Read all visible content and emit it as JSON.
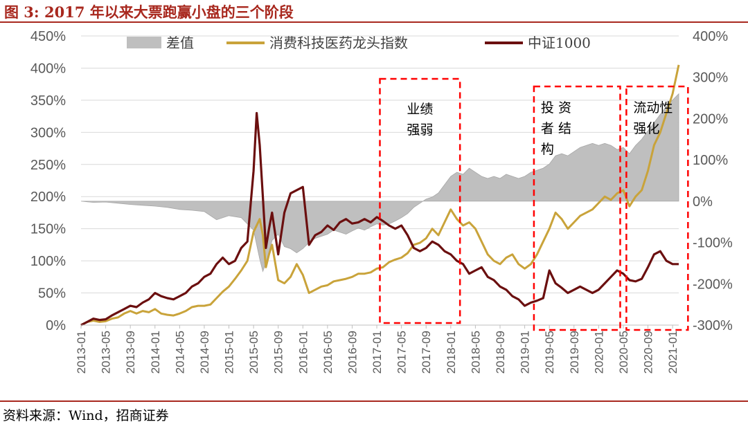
{
  "title": "图 3:  2017 年以来大票跑赢小盘的三个阶段",
  "source": "资料来源：Wind，招商证券",
  "chart_data": {
    "type": "line",
    "title": "图 3:  2017 年以来大票跑赢小盘的三个阶段",
    "left_axis": {
      "ylim": [
        0,
        450
      ],
      "ticks": [
        0,
        50,
        100,
        150,
        200,
        250,
        300,
        350,
        400,
        450
      ],
      "format": "percent"
    },
    "right_axis": {
      "ylim": [
        -300,
        400
      ],
      "ticks": [
        -300,
        -200,
        -100,
        0,
        100,
        200,
        300,
        400
      ],
      "format": "percent"
    },
    "x_ticks": [
      "2013-01",
      "2013-05",
      "2013-09",
      "2014-01",
      "2014-05",
      "2014-09",
      "2015-01",
      "2015-05",
      "2015-09",
      "2016-01",
      "2016-05",
      "2016-09",
      "2017-01",
      "2017-05",
      "2017-09",
      "2018-01",
      "2018-05",
      "2018-09",
      "2019-01",
      "2019-05",
      "2019-09",
      "2020-01",
      "2020-05",
      "2020-09",
      "2021-01"
    ],
    "x_months": [
      0,
      97
    ],
    "legend": [
      {
        "name": "差值",
        "color": "#bfbfbf",
        "kind": "area"
      },
      {
        "name": "消费科技医药龙头指数",
        "color": "#c9a33a",
        "kind": "line"
      },
      {
        "name": "中证1000",
        "color": "#6b0f0f",
        "kind": "line"
      }
    ],
    "series": [
      {
        "name": "消费科技医药龙头指数",
        "axis": "left",
        "color": "#c9a33a",
        "points": [
          [
            0,
            0
          ],
          [
            1,
            5
          ],
          [
            2,
            7
          ],
          [
            3,
            5
          ],
          [
            4,
            6
          ],
          [
            5,
            10
          ],
          [
            6,
            12
          ],
          [
            7,
            18
          ],
          [
            8,
            22
          ],
          [
            9,
            18
          ],
          [
            10,
            22
          ],
          [
            11,
            20
          ],
          [
            12,
            25
          ],
          [
            13,
            18
          ],
          [
            14,
            16
          ],
          [
            15,
            15
          ],
          [
            16,
            18
          ],
          [
            17,
            22
          ],
          [
            18,
            28
          ],
          [
            19,
            30
          ],
          [
            20,
            30
          ],
          [
            21,
            32
          ],
          [
            22,
            42
          ],
          [
            23,
            52
          ],
          [
            24,
            60
          ],
          [
            25,
            72
          ],
          [
            26,
            85
          ],
          [
            27,
            100
          ],
          [
            28,
            145
          ],
          [
            29,
            165
          ],
          [
            29.5,
            140
          ],
          [
            30,
            90
          ],
          [
            30.5,
            110
          ],
          [
            31,
            125
          ],
          [
            32,
            70
          ],
          [
            33,
            65
          ],
          [
            34,
            75
          ],
          [
            35,
            95
          ],
          [
            36,
            78
          ],
          [
            37,
            50
          ],
          [
            38,
            55
          ],
          [
            39,
            60
          ],
          [
            40,
            62
          ],
          [
            41,
            68
          ],
          [
            42,
            70
          ],
          [
            43,
            72
          ],
          [
            44,
            75
          ],
          [
            45,
            80
          ],
          [
            46,
            80
          ],
          [
            47,
            82
          ],
          [
            48,
            88
          ],
          [
            49,
            90
          ],
          [
            50,
            98
          ],
          [
            51,
            102
          ],
          [
            52,
            105
          ],
          [
            53,
            112
          ],
          [
            54,
            125
          ],
          [
            55,
            128
          ],
          [
            56,
            135
          ],
          [
            57,
            150
          ],
          [
            58,
            140
          ],
          [
            59,
            160
          ],
          [
            60,
            180
          ],
          [
            61,
            165
          ],
          [
            62,
            155
          ],
          [
            63,
            160
          ],
          [
            64,
            150
          ],
          [
            65,
            130
          ],
          [
            66,
            110
          ],
          [
            67,
            100
          ],
          [
            68,
            95
          ],
          [
            69,
            105
          ],
          [
            70,
            110
          ],
          [
            71,
            95
          ],
          [
            72,
            88
          ],
          [
            73,
            95
          ],
          [
            74,
            110
          ],
          [
            75,
            130
          ],
          [
            76,
            150
          ],
          [
            77,
            175
          ],
          [
            78,
            165
          ],
          [
            79,
            150
          ],
          [
            80,
            160
          ],
          [
            81,
            170
          ],
          [
            82,
            175
          ],
          [
            83,
            180
          ],
          [
            84,
            190
          ],
          [
            85,
            200
          ],
          [
            86,
            195
          ],
          [
            87,
            205
          ],
          [
            88,
            210
          ],
          [
            89,
            185
          ],
          [
            90,
            200
          ],
          [
            91,
            210
          ],
          [
            92,
            240
          ],
          [
            93,
            280
          ],
          [
            94,
            300
          ],
          [
            95,
            330
          ],
          [
            96,
            360
          ],
          [
            97,
            405
          ]
        ]
      },
      {
        "name": "中证1000",
        "axis": "left",
        "color": "#6b0f0f",
        "points": [
          [
            0,
            0
          ],
          [
            1,
            5
          ],
          [
            2,
            10
          ],
          [
            3,
            8
          ],
          [
            4,
            9
          ],
          [
            5,
            15
          ],
          [
            6,
            20
          ],
          [
            7,
            25
          ],
          [
            8,
            30
          ],
          [
            9,
            28
          ],
          [
            10,
            35
          ],
          [
            11,
            40
          ],
          [
            12,
            50
          ],
          [
            13,
            45
          ],
          [
            14,
            42
          ],
          [
            15,
            40
          ],
          [
            16,
            45
          ],
          [
            17,
            50
          ],
          [
            18,
            60
          ],
          [
            19,
            65
          ],
          [
            20,
            75
          ],
          [
            21,
            80
          ],
          [
            22,
            95
          ],
          [
            23,
            105
          ],
          [
            24,
            95
          ],
          [
            25,
            100
          ],
          [
            26,
            120
          ],
          [
            27,
            130
          ],
          [
            28,
            240
          ],
          [
            28.5,
            330
          ],
          [
            29,
            280
          ],
          [
            29.5,
            200
          ],
          [
            30,
            120
          ],
          [
            30.5,
            150
          ],
          [
            31,
            175
          ],
          [
            32,
            110
          ],
          [
            33,
            175
          ],
          [
            34,
            205
          ],
          [
            35,
            210
          ],
          [
            36,
            215
          ],
          [
            37,
            125
          ],
          [
            38,
            140
          ],
          [
            39,
            145
          ],
          [
            40,
            155
          ],
          [
            41,
            148
          ],
          [
            42,
            160
          ],
          [
            43,
            165
          ],
          [
            44,
            158
          ],
          [
            45,
            160
          ],
          [
            46,
            165
          ],
          [
            47,
            160
          ],
          [
            48,
            168
          ],
          [
            49,
            162
          ],
          [
            50,
            155
          ],
          [
            51,
            150
          ],
          [
            52,
            155
          ],
          [
            53,
            140
          ],
          [
            54,
            120
          ],
          [
            55,
            115
          ],
          [
            56,
            120
          ],
          [
            57,
            130
          ],
          [
            58,
            125
          ],
          [
            59,
            115
          ],
          [
            60,
            110
          ],
          [
            61,
            100
          ],
          [
            62,
            95
          ],
          [
            63,
            80
          ],
          [
            64,
            85
          ],
          [
            65,
            90
          ],
          [
            66,
            75
          ],
          [
            67,
            70
          ],
          [
            68,
            60
          ],
          [
            69,
            55
          ],
          [
            70,
            45
          ],
          [
            71,
            40
          ],
          [
            72,
            30
          ],
          [
            73,
            35
          ],
          [
            74,
            38
          ],
          [
            75,
            42
          ],
          [
            76,
            85
          ],
          [
            77,
            65
          ],
          [
            78,
            58
          ],
          [
            79,
            50
          ],
          [
            80,
            55
          ],
          [
            81,
            60
          ],
          [
            82,
            55
          ],
          [
            83,
            50
          ],
          [
            84,
            55
          ],
          [
            85,
            65
          ],
          [
            86,
            75
          ],
          [
            87,
            85
          ],
          [
            88,
            80
          ],
          [
            89,
            70
          ],
          [
            90,
            68
          ],
          [
            91,
            72
          ],
          [
            92,
            90
          ],
          [
            93,
            110
          ],
          [
            94,
            115
          ],
          [
            95,
            100
          ],
          [
            96,
            95
          ],
          [
            97,
            95
          ]
        ]
      },
      {
        "name": "差值",
        "axis": "right",
        "color": "#bfbfbf",
        "points": [
          [
            0,
            0
          ],
          [
            2,
            -3
          ],
          [
            4,
            -2
          ],
          [
            6,
            -5
          ],
          [
            8,
            -8
          ],
          [
            10,
            -10
          ],
          [
            12,
            -12
          ],
          [
            14,
            -15
          ],
          [
            16,
            -20
          ],
          [
            18,
            -22
          ],
          [
            20,
            -25
          ],
          [
            22,
            -45
          ],
          [
            24,
            -35
          ],
          [
            26,
            -40
          ],
          [
            28,
            -70
          ],
          [
            29,
            -140
          ],
          [
            29.5,
            -170
          ],
          [
            30,
            -150
          ],
          [
            31,
            -95
          ],
          [
            32,
            -80
          ],
          [
            33,
            -110
          ],
          [
            34,
            -115
          ],
          [
            35,
            -125
          ],
          [
            36,
            -115
          ],
          [
            37,
            -100
          ],
          [
            38,
            -90
          ],
          [
            39,
            -85
          ],
          [
            40,
            -80
          ],
          [
            41,
            -70
          ],
          [
            42,
            -75
          ],
          [
            43,
            -80
          ],
          [
            44,
            -72
          ],
          [
            45,
            -65
          ],
          [
            46,
            -70
          ],
          [
            47,
            -62
          ],
          [
            48,
            -55
          ],
          [
            49,
            -58
          ],
          [
            50,
            -55
          ],
          [
            51,
            -48
          ],
          [
            52,
            -40
          ],
          [
            53,
            -30
          ],
          [
            54,
            -15
          ],
          [
            55,
            -5
          ],
          [
            56,
            5
          ],
          [
            57,
            10
          ],
          [
            58,
            20
          ],
          [
            59,
            40
          ],
          [
            60,
            60
          ],
          [
            61,
            70
          ],
          [
            62,
            65
          ],
          [
            63,
            80
          ],
          [
            64,
            70
          ],
          [
            65,
            60
          ],
          [
            66,
            55
          ],
          [
            67,
            60
          ],
          [
            68,
            55
          ],
          [
            69,
            65
          ],
          [
            70,
            60
          ],
          [
            71,
            55
          ],
          [
            72,
            60
          ],
          [
            73,
            70
          ],
          [
            74,
            75
          ],
          [
            75,
            80
          ],
          [
            76,
            90
          ],
          [
            77,
            110
          ],
          [
            78,
            115
          ],
          [
            79,
            110
          ],
          [
            80,
            120
          ],
          [
            81,
            130
          ],
          [
            82,
            135
          ],
          [
            83,
            140
          ],
          [
            84,
            135
          ],
          [
            85,
            140
          ],
          [
            86,
            135
          ],
          [
            87,
            125
          ],
          [
            88,
            130
          ],
          [
            89,
            115
          ],
          [
            90,
            135
          ],
          [
            91,
            150
          ],
          [
            92,
            170
          ],
          [
            93,
            190
          ],
          [
            94,
            210
          ],
          [
            95,
            230
          ],
          [
            96,
            245
          ],
          [
            97,
            260
          ]
        ]
      }
    ],
    "annotations": [
      {
        "lines": [
          "业绩",
          "强弱"
        ],
        "x_range": [
          48.5,
          61.5
        ]
      },
      {
        "lines": [
          "投 资",
          "者 结",
          "构"
        ],
        "x_range": [
          73.5,
          87.5
        ]
      },
      {
        "lines": [
          "流动性",
          "强化"
        ],
        "x_range": [
          88.5,
          98.5
        ]
      }
    ]
  }
}
